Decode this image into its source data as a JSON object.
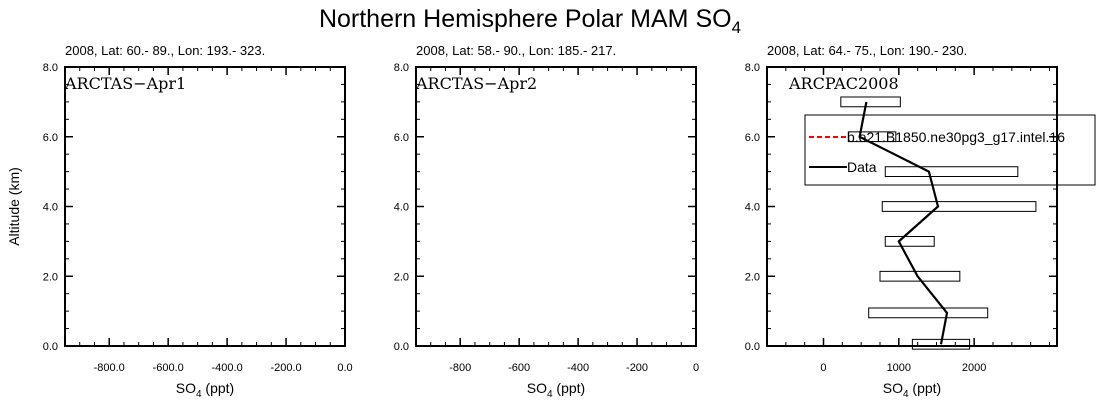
{
  "figure": {
    "title_main": "Northern Hemisphere Polar MAM SO",
    "title_sub": "4"
  },
  "chart_data": [
    {
      "type": "line",
      "subtitle": "2008, Lat:  60.- 89., Lon: 193.- 323.",
      "campaign_label": "ARCTAS−Apr1",
      "xlabel_main": "SO",
      "xlabel_sub": "4",
      "xlabel_unit": " (ppt)",
      "ylabel": "Altitude (km)",
      "xlim": [
        -950,
        0
      ],
      "ylim": [
        0,
        8
      ],
      "xticks": [
        {
          "value": -800,
          "label": "-800.0"
        },
        {
          "value": -600,
          "label": "-600.0"
        },
        {
          "value": -400,
          "label": "-400.0"
        },
        {
          "value": -200,
          "label": "-200.0"
        },
        {
          "value": 0,
          "label": "0.0"
        }
      ],
      "yticks": [
        {
          "value": 0,
          "label": "0.0"
        },
        {
          "value": 2,
          "label": "2.0"
        },
        {
          "value": 4,
          "label": "4.0"
        },
        {
          "value": 6,
          "label": "6.0"
        },
        {
          "value": 8,
          "label": "8.0"
        }
      ],
      "series": [],
      "boxes": []
    },
    {
      "type": "line",
      "subtitle": "2008, Lat:  58.- 90., Lon: 185.- 217.",
      "campaign_label": "ARCTAS−Apr2",
      "xlabel_main": "SO",
      "xlabel_sub": "4",
      "xlabel_unit": " (ppt)",
      "ylabel": "",
      "xlim": [
        -950,
        0
      ],
      "ylim": [
        0,
        8
      ],
      "xticks": [
        {
          "value": -800,
          "label": "-800"
        },
        {
          "value": -600,
          "label": "-600"
        },
        {
          "value": -400,
          "label": "-400"
        },
        {
          "value": -200,
          "label": "-200"
        },
        {
          "value": 0,
          "label": "0"
        }
      ],
      "yticks": [
        {
          "value": 0,
          "label": "0.0"
        },
        {
          "value": 2,
          "label": "2.0"
        },
        {
          "value": 4,
          "label": "4.0"
        },
        {
          "value": 6,
          "label": "6.0"
        },
        {
          "value": 8,
          "label": "8.0"
        }
      ],
      "series": [],
      "boxes": []
    },
    {
      "type": "line",
      "subtitle": "2008, Lat: 64.- 75., Lon: 190.- 230.",
      "campaign_label": "ARCPAC2008",
      "xlabel_main": "SO",
      "xlabel_sub": "4",
      "xlabel_unit": " (ppt)",
      "ylabel": "",
      "xlim": [
        -750,
        3100
      ],
      "ylim": [
        0,
        8
      ],
      "xticks": [
        {
          "value": 0,
          "label": "0"
        },
        {
          "value": 1000,
          "label": "1000"
        },
        {
          "value": 2000,
          "label": "2000"
        }
      ],
      "yticks": [
        {
          "value": 0,
          "label": "0.0"
        },
        {
          "value": 2,
          "label": "2.0"
        },
        {
          "value": 4,
          "label": "4.0"
        },
        {
          "value": 6,
          "label": "6.0"
        },
        {
          "value": 8,
          "label": "8.0"
        }
      ],
      "series": [
        {
          "name": "Data",
          "color": "#000000",
          "dash": "solid",
          "points": [
            {
              "x": 1560,
              "y": 0.05
            },
            {
              "x": 1640,
              "y": 0.95
            },
            {
              "x": 1250,
              "y": 2.0
            },
            {
              "x": 1000,
              "y": 3.0
            },
            {
              "x": 1520,
              "y": 4.0
            },
            {
              "x": 1400,
              "y": 5.0
            },
            {
              "x": 480,
              "y": 6.0
            },
            {
              "x": 570,
              "y": 7.0
            }
          ]
        },
        {
          "name": "b.e21.B1850.ne30pg3_g17.intel.16",
          "color": "#ff0000",
          "dash": "dashed",
          "points": []
        }
      ],
      "boxes": [
        {
          "y": 0.05,
          "x_low": 1180,
          "x_high": 1940,
          "height": 0.28
        },
        {
          "y": 0.95,
          "x_low": 600,
          "x_high": 2180,
          "height": 0.28
        },
        {
          "y": 2.0,
          "x_low": 750,
          "x_high": 1810,
          "height": 0.28
        },
        {
          "y": 3.0,
          "x_low": 820,
          "x_high": 1470,
          "height": 0.28
        },
        {
          "y": 4.0,
          "x_low": 780,
          "x_high": 2820,
          "height": 0.28
        },
        {
          "y": 5.0,
          "x_low": 820,
          "x_high": 2580,
          "height": 0.28
        },
        {
          "y": 6.0,
          "x_low": 330,
          "x_high": 960,
          "height": 0.28
        },
        {
          "y": 7.0,
          "x_low": 230,
          "x_high": 1020,
          "height": 0.28
        }
      ],
      "legend_placement": "top-right",
      "legend_entries": [
        {
          "label": "b.e21.B1850.ne30pg3_g17.intel.16",
          "color": "#ff0000",
          "dash": "dashed"
        },
        {
          "label": "Data",
          "color": "#000000",
          "dash": "solid"
        }
      ]
    }
  ]
}
